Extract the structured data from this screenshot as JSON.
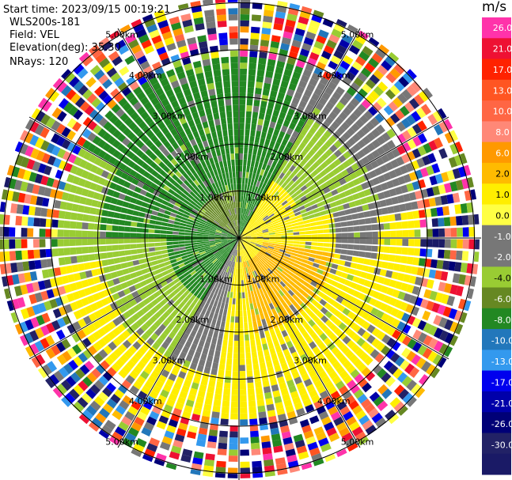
{
  "info": {
    "start_time": "Start time: 2023/09/15 00:19:21",
    "site": "WLS200s-181",
    "field": "Field: VEL",
    "elevation": "Elevation(deg): 35.30",
    "nrays": "NRays: 120"
  },
  "chart_data": {
    "type": "polar_ppi",
    "field": "VEL",
    "units": "m/s",
    "n_rays": 120,
    "range_rings_km": [
      1.0,
      2.0,
      3.0,
      4.0,
      5.0
    ],
    "ring_labels": [
      "1.00km",
      "2.00km",
      "3.00km",
      "4.00km",
      "5.00km"
    ],
    "max_range_km": 5.0,
    "spokes_deg": [
      0,
      30,
      60,
      90,
      120,
      150,
      180,
      210,
      240,
      270,
      300,
      330
    ],
    "colorbar": {
      "ticks": [
        "26.0",
        "21.0",
        "17.0",
        "13.0",
        "10.0",
        "8.0",
        "6.0",
        "2.0",
        "1.0",
        "0.0",
        "-1.0",
        "-2.0",
        "-4.0",
        "-6.0",
        "-8.0",
        "-10.0",
        "-13.0",
        "-17.0",
        "-21.0",
        "-26.0",
        "-30.0"
      ],
      "colors": [
        "#ff33aa",
        "#ee1133",
        "#ff2200",
        "#ff5522",
        "#ff6644",
        "#ff8877",
        "#ff9900",
        "#ffbb00",
        "#ffee00",
        "#ffff44",
        "#777777",
        "#777777",
        "#99cc33",
        "#668822",
        "#228822",
        "#2277bb",
        "#3399ee",
        "#0000ee",
        "#0000aa",
        "#000077",
        "#222266",
        "#1a1a66"
      ]
    },
    "regions_km": [
      {
        "sector_deg": [
          210,
          355
        ],
        "range_km": [
          0,
          3.0
        ],
        "value_ms": -6.0
      },
      {
        "sector_deg": [
          300,
          30
        ],
        "range_km": [
          0,
          3.0
        ],
        "value_ms": -4.0
      },
      {
        "sector_deg": [
          40,
          120
        ],
        "range_km": [
          0.8,
          2.0
        ],
        "value_ms": 2.0
      },
      {
        "sector_deg": [
          60,
          190
        ],
        "range_km": [
          0.6,
          2.3
        ],
        "value_ms": 8.0
      },
      {
        "sector_deg": [
          120,
          250
        ],
        "range_km": [
          0.5,
          3.0
        ],
        "value_ms": 2.0
      },
      {
        "sector_deg": [
          20,
          80
        ],
        "range_km": [
          1.5,
          3.0
        ],
        "value_ms": 0.0
      }
    ]
  }
}
